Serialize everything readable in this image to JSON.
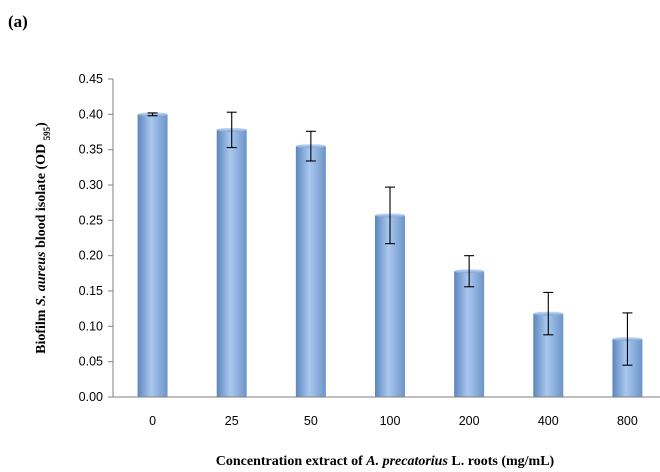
{
  "chart_data": {
    "type": "bar",
    "panel_label": "(a)",
    "categories": [
      "0",
      "25",
      "50",
      "100",
      "200",
      "400",
      "800"
    ],
    "values": [
      0.4,
      0.378,
      0.355,
      0.257,
      0.178,
      0.118,
      0.082
    ],
    "errors": [
      0.002,
      0.025,
      0.021,
      0.04,
      0.022,
      0.03,
      0.037
    ],
    "ylim": [
      0,
      0.45
    ],
    "yticks": [
      "0.00",
      "0.05",
      "0.10",
      "0.15",
      "0.20",
      "0.25",
      "0.30",
      "0.35",
      "0.40",
      "0.45"
    ],
    "ylabel": {
      "prefix": "Biofilm ",
      "italic": "S. aureus",
      "middle": " blood isolate  (OD ",
      "subscript": "595",
      "suffix": ")"
    },
    "xlabel": {
      "prefix": "Concentration extract of ",
      "italic": "A. precatorius",
      "suffix": " L. roots (mg/mL)"
    },
    "bar_color": "#8fb4e3",
    "grid": false,
    "legend": "none"
  }
}
